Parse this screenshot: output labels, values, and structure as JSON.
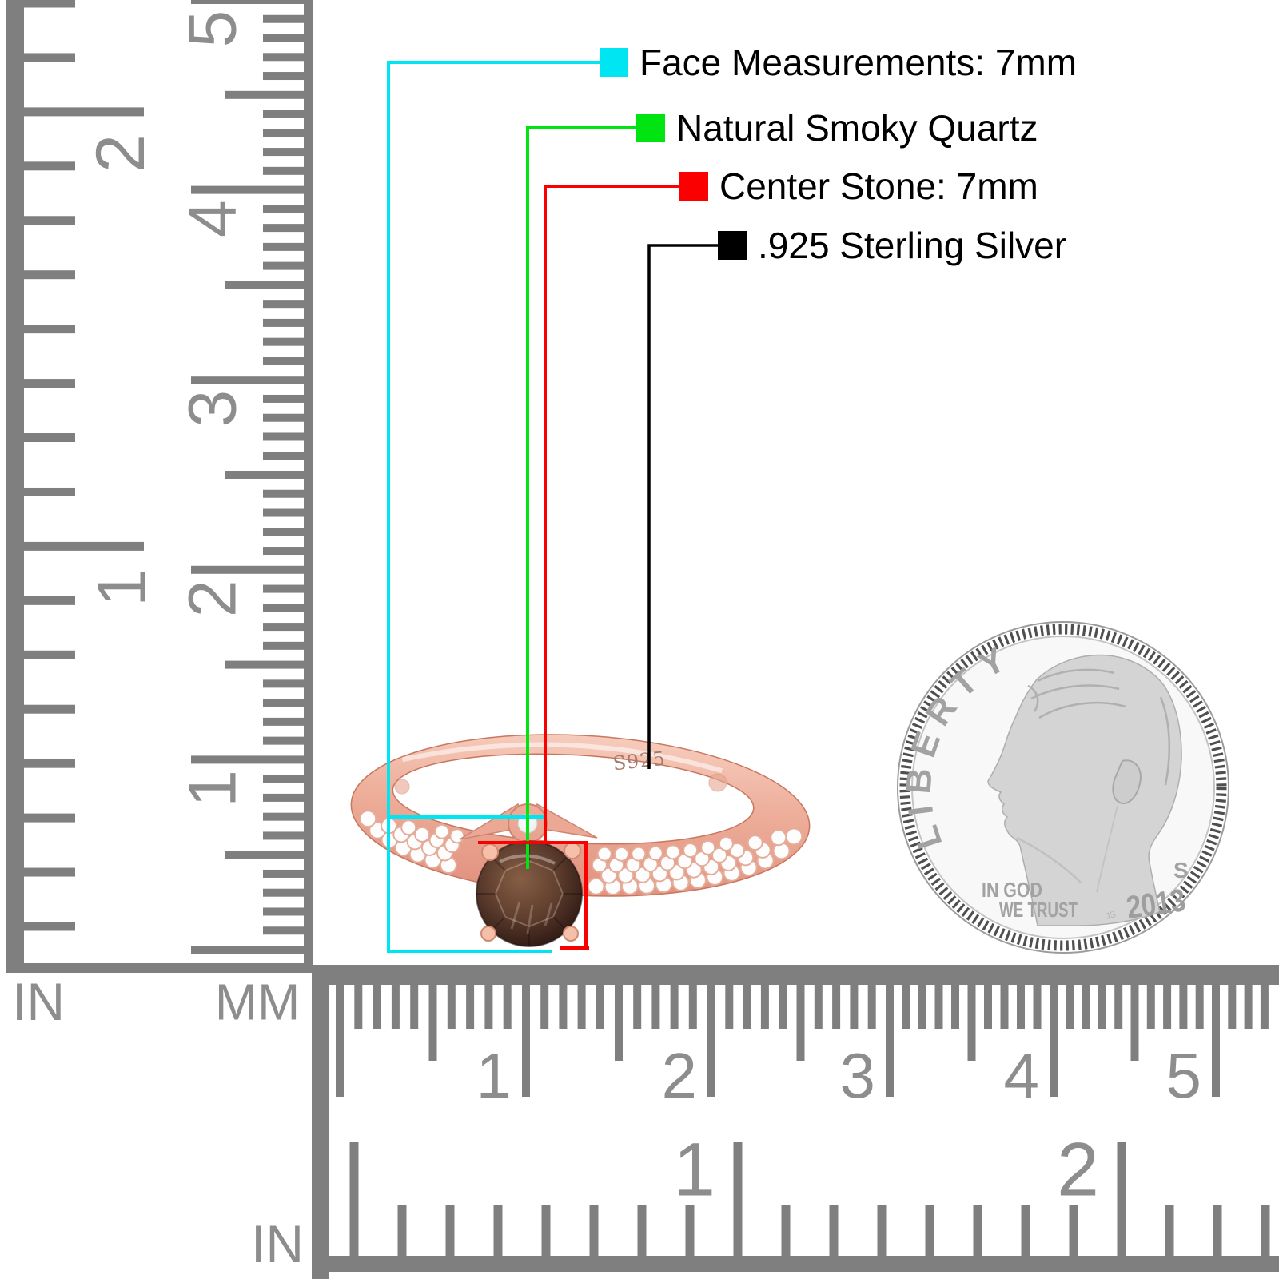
{
  "legend": {
    "items": [
      {
        "label": "Face Measurements: 7mm",
        "color": "#00e5f2"
      },
      {
        "label": "Natural Smoky Quartz",
        "color": "#00e412"
      },
      {
        "label": "Center Stone: 7mm",
        "color": "#fa0000"
      },
      {
        "label": ".925 Sterling Silver",
        "color": "#000000"
      }
    ]
  },
  "ring": {
    "hallmark": "S925",
    "band_color": "#eeb09c",
    "stone_color": "#45291f",
    "pave_color": "#fdfdfd"
  },
  "coin": {
    "motto_top": "LIBERTY",
    "motto_line1": "IN GOD",
    "motto_line2": "WE TRUST",
    "mint_mark": "S",
    "year": "2013",
    "designer_initials": "JS"
  },
  "rulers": {
    "color": "#7f7f7f",
    "digit_color": "#8d8d8d",
    "vertical": {
      "unit_inch": "IN",
      "unit_mm": "MM",
      "inch_labels": [
        "2",
        "1"
      ],
      "cm_labels": [
        "5",
        "4",
        "3",
        "2",
        "1"
      ]
    },
    "horizontal": {
      "unit_inch": "IN",
      "cm_labels": [
        "1",
        "2",
        "3",
        "4",
        "5"
      ],
      "inch_labels": [
        "1",
        "2"
      ]
    }
  }
}
